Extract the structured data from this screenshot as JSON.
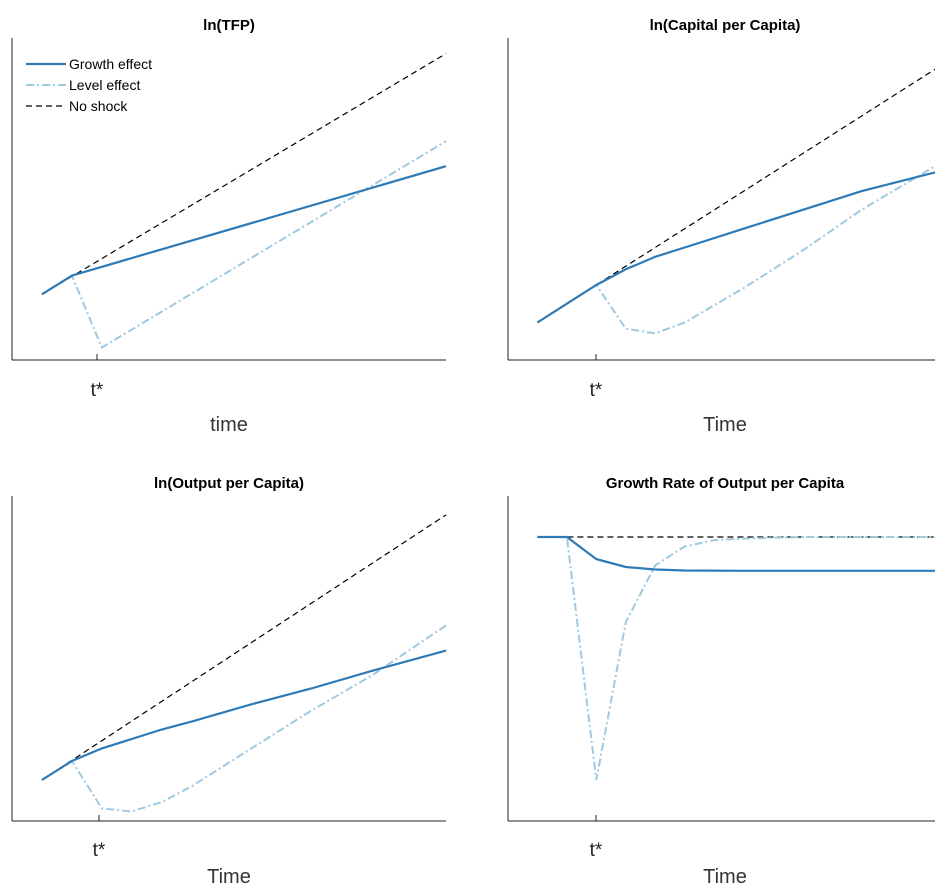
{
  "colors": {
    "growth": "#2e7ab6",
    "level": "#9ecae1",
    "noshock": "#000000",
    "axis": "#222222"
  },
  "legend": {
    "growth": "Growth effect",
    "level": "Level effect",
    "noshock": "No shock"
  },
  "chart_data": [
    {
      "type": "line",
      "title": "ln(TFP)",
      "xlabel": "time",
      "ylabel": "",
      "x_tick_label": "t*",
      "x_tick": 2,
      "xlim": [
        0,
        14.5
      ],
      "ylim": [
        0,
        10.3
      ],
      "series": [
        {
          "name": "Growth effect",
          "x": [
            1,
            2,
            14.5
          ],
          "y": [
            2.1,
            2.7,
            6.2
          ]
        },
        {
          "name": "Level effect",
          "x": [
            1,
            2,
            3,
            14.5
          ],
          "y": [
            2.1,
            2.7,
            0.4,
            7.0
          ]
        },
        {
          "name": "No shock",
          "x": [
            1,
            14.5
          ],
          "y": [
            2.1,
            9.8
          ]
        }
      ]
    },
    {
      "type": "line",
      "title": "ln(Capital per Capita)",
      "xlabel": "Time",
      "ylabel": "",
      "x_tick_label": "t*",
      "x_tick": 3,
      "xlim": [
        0,
        14.5
      ],
      "ylim": [
        0,
        10.3
      ],
      "series": [
        {
          "name": "Growth effect",
          "x": [
            1,
            2,
            3,
            4,
            5,
            6,
            8,
            10,
            12,
            14.5
          ],
          "y": [
            1.2,
            1.8,
            2.4,
            2.9,
            3.3,
            3.6,
            4.2,
            4.8,
            5.4,
            6.0
          ]
        },
        {
          "name": "Level effect",
          "x": [
            1,
            2,
            3,
            4,
            5,
            6,
            8,
            10,
            12,
            14.5
          ],
          "y": [
            1.2,
            1.8,
            2.4,
            1.0,
            0.85,
            1.2,
            2.3,
            3.5,
            4.8,
            6.2
          ]
        },
        {
          "name": "No shock",
          "x": [
            1,
            14.5
          ],
          "y": [
            1.2,
            9.3
          ]
        }
      ]
    },
    {
      "type": "line",
      "title": "ln(Output per Capita)",
      "xlabel": "Time",
      "ylabel": "",
      "x_tick_label": "t*",
      "x_tick": 3,
      "xlim": [
        0,
        14.5
      ],
      "ylim": [
        0,
        10.3
      ],
      "series": [
        {
          "name": "Growth effect",
          "x": [
            1,
            2,
            3,
            4,
            5,
            6,
            8,
            10,
            12,
            14.5
          ],
          "y": [
            1.3,
            1.9,
            2.3,
            2.6,
            2.9,
            3.15,
            3.7,
            4.2,
            4.75,
            5.4
          ]
        },
        {
          "name": "Level effect",
          "x": [
            1,
            2,
            3,
            4,
            5,
            6,
            8,
            10,
            12,
            14.5
          ],
          "y": [
            1.3,
            1.9,
            0.4,
            0.3,
            0.6,
            1.1,
            2.3,
            3.5,
            4.6,
            6.2
          ]
        },
        {
          "name": "No shock",
          "x": [
            1,
            14.5
          ],
          "y": [
            1.3,
            9.7
          ]
        }
      ]
    },
    {
      "type": "line",
      "title": "Growth Rate of Output per Capita",
      "xlabel": "Time",
      "ylabel": "",
      "x_tick_label": "t*",
      "x_tick": 3,
      "xlim": [
        0,
        14.5
      ],
      "ylim": [
        0,
        10.3
      ],
      "series": [
        {
          "name": "Growth effect",
          "x": [
            1,
            2,
            3,
            4,
            5,
            6,
            8,
            10,
            12,
            14.5
          ],
          "y": [
            9.0,
            9.0,
            8.3,
            8.05,
            7.97,
            7.94,
            7.93,
            7.93,
            7.93,
            7.93
          ]
        },
        {
          "name": "Level effect",
          "x": [
            1,
            2,
            3,
            4,
            5,
            6,
            7,
            8,
            10,
            12,
            14.5
          ],
          "y": [
            9.0,
            9.0,
            1.3,
            6.3,
            8.1,
            8.7,
            8.9,
            8.95,
            9.0,
            9.0,
            9.0
          ]
        },
        {
          "name": "No shock",
          "x": [
            1,
            14.5
          ],
          "y": [
            9.0,
            9.0
          ]
        }
      ]
    }
  ]
}
